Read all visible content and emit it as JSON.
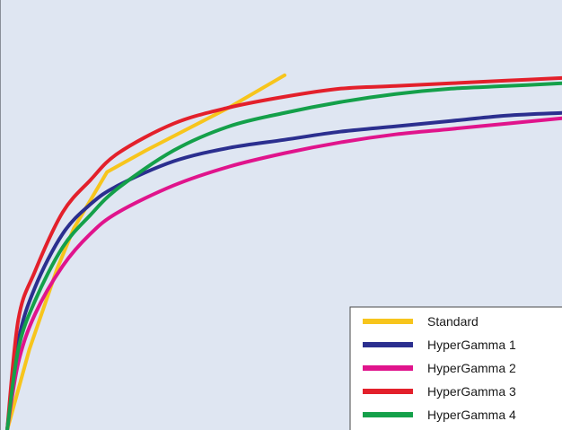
{
  "chart_data": {
    "type": "line",
    "title": "",
    "xlabel": "",
    "ylabel": "",
    "xlim": [
      0,
      1
    ],
    "ylim": [
      0,
      1.6
    ],
    "grid": false,
    "legend_position": "bottom-right",
    "background_color": "#dfe6f2",
    "series": [
      {
        "name": "Standard",
        "color": "#f7c51c",
        "points": [
          [
            0,
            0
          ],
          [
            0.04,
            0.3
          ],
          [
            0.09,
            0.6
          ],
          [
            0.12,
            0.75
          ],
          [
            0.18,
            0.96
          ],
          [
            0.25,
            1.04
          ],
          [
            0.4,
            1.2
          ],
          [
            0.5,
            1.32
          ]
        ]
      },
      {
        "name": "HyperGamma 1",
        "color": "#2b2f8f",
        "points": [
          [
            0,
            0
          ],
          [
            0.02,
            0.33
          ],
          [
            0.05,
            0.53
          ],
          [
            0.1,
            0.73
          ],
          [
            0.15,
            0.84
          ],
          [
            0.2,
            0.91
          ],
          [
            0.3,
            1.0
          ],
          [
            0.4,
            1.05
          ],
          [
            0.5,
            1.08
          ],
          [
            0.6,
            1.11
          ],
          [
            0.7,
            1.13
          ],
          [
            0.8,
            1.15
          ],
          [
            0.9,
            1.17
          ],
          [
            1.0,
            1.18
          ]
        ]
      },
      {
        "name": "HyperGamma 2",
        "color": "#e0148c",
        "points": [
          [
            0,
            0
          ],
          [
            0.02,
            0.25
          ],
          [
            0.05,
            0.43
          ],
          [
            0.1,
            0.61
          ],
          [
            0.15,
            0.73
          ],
          [
            0.2,
            0.81
          ],
          [
            0.3,
            0.91
          ],
          [
            0.4,
            0.98
          ],
          [
            0.5,
            1.03
          ],
          [
            0.6,
            1.07
          ],
          [
            0.7,
            1.1
          ],
          [
            0.8,
            1.12
          ],
          [
            0.9,
            1.14
          ],
          [
            1.0,
            1.16
          ]
        ]
      },
      {
        "name": "HyperGamma 3",
        "color": "#e3202b",
        "points": [
          [
            0,
            0
          ],
          [
            0.02,
            0.41
          ],
          [
            0.05,
            0.59
          ],
          [
            0.1,
            0.81
          ],
          [
            0.15,
            0.93
          ],
          [
            0.2,
            1.03
          ],
          [
            0.3,
            1.14
          ],
          [
            0.4,
            1.2
          ],
          [
            0.5,
            1.24
          ],
          [
            0.6,
            1.27
          ],
          [
            0.7,
            1.28
          ],
          [
            0.8,
            1.29
          ],
          [
            0.9,
            1.3
          ],
          [
            1.0,
            1.31
          ]
        ]
      },
      {
        "name": "HyperGamma 4",
        "color": "#14a04a",
        "points": [
          [
            0,
            0
          ],
          [
            0.02,
            0.3
          ],
          [
            0.05,
            0.48
          ],
          [
            0.1,
            0.68
          ],
          [
            0.15,
            0.8
          ],
          [
            0.2,
            0.9
          ],
          [
            0.3,
            1.04
          ],
          [
            0.4,
            1.13
          ],
          [
            0.5,
            1.18
          ],
          [
            0.6,
            1.22
          ],
          [
            0.7,
            1.25
          ],
          [
            0.8,
            1.27
          ],
          [
            0.9,
            1.28
          ],
          [
            1.0,
            1.29
          ]
        ]
      }
    ]
  }
}
